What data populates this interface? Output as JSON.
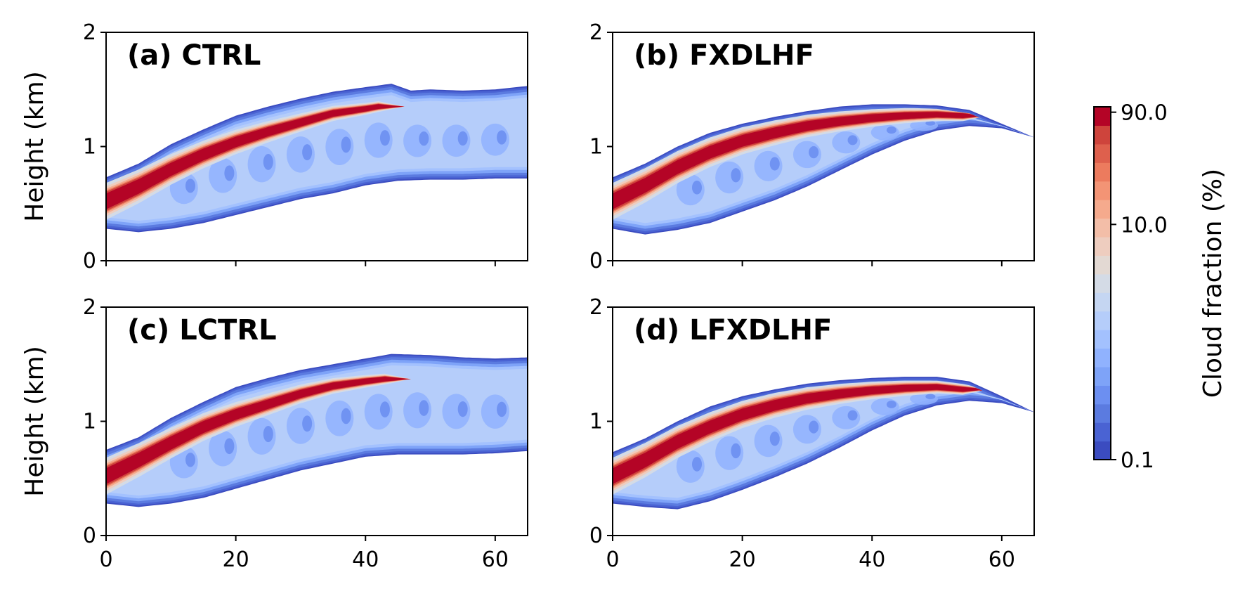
{
  "chart_data": {
    "type": "contour",
    "colorbar": {
      "label": "Cloud fraction (%)",
      "ticks": [
        "90.0",
        "10.0",
        "0.1"
      ],
      "scale": "log",
      "range": [
        0.1,
        100
      ],
      "colormap": "coolwarm",
      "colors": [
        "#3b4cc0",
        "#4a63d3",
        "#5b7be0",
        "#6c8ff1",
        "#7ea3f8",
        "#90b2fe",
        "#a3c1fe",
        "#b5cdfa",
        "#c5d6f2",
        "#d4dbe6",
        "#e3d9d3",
        "#eecdbf",
        "#f3bea8",
        "#f5aa8d",
        "#f39475",
        "#ec7b5e",
        "#de604d",
        "#ce443c",
        "#b40426"
      ]
    },
    "panels": [
      {
        "title": "(a) CTRL",
        "ylabel": "Height (km)",
        "xlim": [
          0,
          65
        ],
        "ylim": [
          0,
          2
        ],
        "xticks": [
          "0",
          "20",
          "40",
          "60"
        ],
        "xtick_labels_shown": false,
        "yticks": [
          "0",
          "1",
          "2"
        ],
        "top": [
          [
            0,
            0.73
          ],
          [
            5,
            0.85
          ],
          [
            10,
            1.02
          ],
          [
            15,
            1.15
          ],
          [
            20,
            1.27
          ],
          [
            25,
            1.35
          ],
          [
            30,
            1.42
          ],
          [
            35,
            1.48
          ],
          [
            40,
            1.52
          ],
          [
            44,
            1.55
          ],
          [
            47,
            1.49
          ],
          [
            50,
            1.5
          ],
          [
            55,
            1.49
          ],
          [
            60,
            1.5
          ],
          [
            65,
            1.53
          ]
        ],
        "bottom": [
          [
            0,
            0.28
          ],
          [
            5,
            0.25
          ],
          [
            10,
            0.28
          ],
          [
            15,
            0.33
          ],
          [
            20,
            0.4
          ],
          [
            25,
            0.47
          ],
          [
            30,
            0.54
          ],
          [
            35,
            0.59
          ],
          [
            40,
            0.66
          ],
          [
            45,
            0.7
          ],
          [
            50,
            0.71
          ],
          [
            55,
            0.71
          ],
          [
            60,
            0.72
          ],
          [
            65,
            0.72
          ]
        ],
        "core": [
          [
            0,
            0.52
          ],
          [
            5,
            0.65
          ],
          [
            10,
            0.8
          ],
          [
            15,
            0.93
          ],
          [
            20,
            1.04
          ],
          [
            25,
            1.13
          ],
          [
            30,
            1.21
          ],
          [
            35,
            1.29
          ],
          [
            40,
            1.33
          ],
          [
            42,
            1.35
          ]
        ],
        "core_width": [
          0.17,
          0.05
        ]
      },
      {
        "title": "(b) FXDLHF",
        "ylabel": "",
        "xlim": [
          0,
          65
        ],
        "ylim": [
          0,
          2
        ],
        "xticks": [
          "0",
          "20",
          "40",
          "60"
        ],
        "xtick_labels_shown": false,
        "yticks": [
          "0",
          "1",
          "2"
        ],
        "top": [
          [
            0,
            0.73
          ],
          [
            5,
            0.85
          ],
          [
            10,
            1.0
          ],
          [
            15,
            1.12
          ],
          [
            20,
            1.2
          ],
          [
            25,
            1.26
          ],
          [
            30,
            1.31
          ],
          [
            35,
            1.35
          ],
          [
            40,
            1.37
          ],
          [
            45,
            1.37
          ],
          [
            50,
            1.36
          ],
          [
            55,
            1.32
          ],
          [
            60,
            1.2
          ],
          [
            65,
            1.08
          ]
        ],
        "bottom": [
          [
            0,
            0.28
          ],
          [
            5,
            0.23
          ],
          [
            10,
            0.27
          ],
          [
            15,
            0.33
          ],
          [
            20,
            0.43
          ],
          [
            25,
            0.53
          ],
          [
            30,
            0.65
          ],
          [
            35,
            0.79
          ],
          [
            40,
            0.93
          ],
          [
            45,
            1.05
          ],
          [
            50,
            1.14
          ],
          [
            55,
            1.18
          ],
          [
            60,
            1.16
          ],
          [
            65,
            1.08
          ]
        ],
        "core": [
          [
            0,
            0.52
          ],
          [
            5,
            0.66
          ],
          [
            10,
            0.82
          ],
          [
            15,
            0.95
          ],
          [
            20,
            1.05
          ],
          [
            25,
            1.12
          ],
          [
            30,
            1.18
          ],
          [
            35,
            1.22
          ],
          [
            40,
            1.25
          ],
          [
            45,
            1.27
          ],
          [
            50,
            1.28
          ],
          [
            54,
            1.27
          ]
        ],
        "core_width": [
          0.17,
          0.05
        ]
      },
      {
        "title": "(c) LCTRL",
        "ylabel": "Height (km)",
        "xlim": [
          0,
          65
        ],
        "ylim": [
          0,
          2
        ],
        "xticks": [
          "0",
          "20",
          "40",
          "60"
        ],
        "xtick_labels_shown": true,
        "yticks": [
          "0",
          "1",
          "2"
        ],
        "top": [
          [
            0,
            0.75
          ],
          [
            5,
            0.86
          ],
          [
            10,
            1.03
          ],
          [
            15,
            1.17
          ],
          [
            20,
            1.3
          ],
          [
            25,
            1.38
          ],
          [
            30,
            1.45
          ],
          [
            35,
            1.5
          ],
          [
            40,
            1.55
          ],
          [
            44,
            1.59
          ],
          [
            50,
            1.58
          ],
          [
            55,
            1.56
          ],
          [
            60,
            1.55
          ],
          [
            65,
            1.56
          ]
        ],
        "bottom": [
          [
            0,
            0.28
          ],
          [
            5,
            0.25
          ],
          [
            10,
            0.28
          ],
          [
            15,
            0.33
          ],
          [
            20,
            0.41
          ],
          [
            25,
            0.49
          ],
          [
            30,
            0.57
          ],
          [
            35,
            0.63
          ],
          [
            40,
            0.69
          ],
          [
            45,
            0.71
          ],
          [
            50,
            0.71
          ],
          [
            55,
            0.71
          ],
          [
            60,
            0.72
          ],
          [
            65,
            0.74
          ]
        ],
        "core": [
          [
            0,
            0.52
          ],
          [
            5,
            0.66
          ],
          [
            10,
            0.81
          ],
          [
            15,
            0.95
          ],
          [
            20,
            1.06
          ],
          [
            25,
            1.15
          ],
          [
            30,
            1.24
          ],
          [
            35,
            1.31
          ],
          [
            40,
            1.35
          ],
          [
            43,
            1.37
          ]
        ],
        "core_width": [
          0.17,
          0.05
        ]
      },
      {
        "title": "(d) LFXDLHF",
        "ylabel": "",
        "xlim": [
          0,
          65
        ],
        "ylim": [
          0,
          2
        ],
        "xticks": [
          "0",
          "20",
          "40",
          "60"
        ],
        "xtick_labels_shown": true,
        "yticks": [
          "0",
          "1",
          "2"
        ],
        "top": [
          [
            0,
            0.73
          ],
          [
            5,
            0.85
          ],
          [
            10,
            1.0
          ],
          [
            15,
            1.13
          ],
          [
            20,
            1.22
          ],
          [
            25,
            1.28
          ],
          [
            30,
            1.33
          ],
          [
            35,
            1.36
          ],
          [
            40,
            1.38
          ],
          [
            45,
            1.39
          ],
          [
            50,
            1.39
          ],
          [
            55,
            1.35
          ],
          [
            60,
            1.22
          ],
          [
            65,
            1.08
          ]
        ],
        "bottom": [
          [
            0,
            0.28
          ],
          [
            5,
            0.25
          ],
          [
            10,
            0.23
          ],
          [
            15,
            0.3
          ],
          [
            20,
            0.4
          ],
          [
            25,
            0.51
          ],
          [
            30,
            0.63
          ],
          [
            35,
            0.77
          ],
          [
            40,
            0.92
          ],
          [
            45,
            1.05
          ],
          [
            50,
            1.14
          ],
          [
            55,
            1.18
          ],
          [
            60,
            1.16
          ],
          [
            65,
            1.08
          ]
        ],
        "core": [
          [
            0,
            0.52
          ],
          [
            5,
            0.66
          ],
          [
            10,
            0.82
          ],
          [
            15,
            0.95
          ],
          [
            20,
            1.06
          ],
          [
            25,
            1.14
          ],
          [
            30,
            1.2
          ],
          [
            35,
            1.24
          ],
          [
            40,
            1.27
          ],
          [
            45,
            1.29
          ],
          [
            50,
            1.3
          ],
          [
            54,
            1.28
          ]
        ],
        "core_width": [
          0.17,
          0.05
        ]
      }
    ]
  }
}
